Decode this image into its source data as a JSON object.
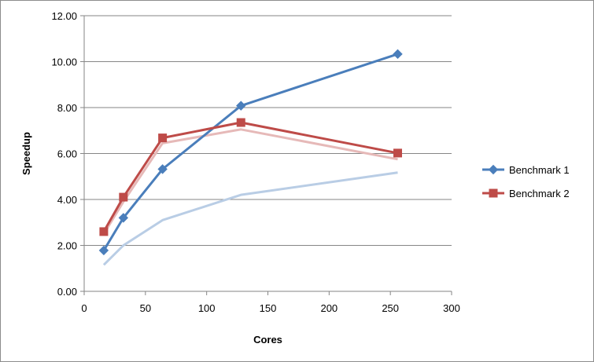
{
  "chart_data": {
    "type": "line",
    "title": "",
    "xlabel": "Cores",
    "ylabel": "Speedup",
    "xlim": [
      0,
      300
    ],
    "ylim": [
      0,
      12
    ],
    "x_ticks": [
      "0",
      "50",
      "100",
      "150",
      "200",
      "250",
      "300"
    ],
    "y_ticks": [
      "0.00",
      "2.00",
      "4.00",
      "6.00",
      "8.00",
      "10.00",
      "12.00"
    ],
    "grid": "horizontal",
    "legend_position": "right",
    "series": [
      {
        "name": "Benchmark 1",
        "color": "#4a7ebb",
        "marker": "diamond",
        "x": [
          16,
          32,
          64,
          128,
          256
        ],
        "values": [
          1.78,
          3.2,
          5.32,
          8.08,
          10.33
        ]
      },
      {
        "name": "Benchmark 2",
        "color": "#be4b48",
        "marker": "square",
        "x": [
          16,
          32,
          64,
          128,
          256
        ],
        "values": [
          2.6,
          4.1,
          6.68,
          7.35,
          6.02
        ]
      },
      {
        "color": "#b9cde5",
        "marker": "none",
        "x": [
          16,
          32,
          64,
          128,
          256
        ],
        "values": [
          1.15,
          2.0,
          3.1,
          4.2,
          5.17
        ]
      },
      {
        "color": "#e6b9b8",
        "marker": "none",
        "x": [
          16,
          32,
          64,
          128,
          256
        ],
        "values": [
          2.5,
          3.9,
          6.45,
          7.05,
          5.75
        ]
      }
    ]
  }
}
